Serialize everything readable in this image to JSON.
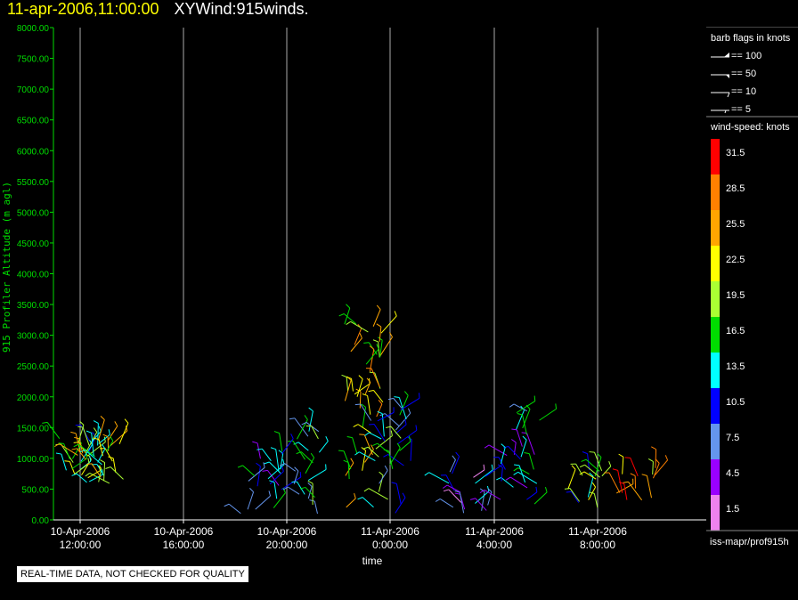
{
  "header": {
    "date_label": "11-apr-2006,11:00:00",
    "product_label": "XYWind:915winds."
  },
  "legend": {
    "barb_title": "barb flags in knots",
    "barb_items": [
      {
        "label": "== 100"
      },
      {
        "label": "== 50"
      },
      {
        "label": "== 10"
      },
      {
        "label": "== 5"
      }
    ],
    "speed_title": "wind-speed: knots",
    "speed_bins": [
      {
        "value": "31.5",
        "color": "#ff0000"
      },
      {
        "value": "28.5",
        "color": "#ff8000"
      },
      {
        "value": "25.5",
        "color": "#ffa500"
      },
      {
        "value": "22.5",
        "color": "#ffff00"
      },
      {
        "value": "19.5",
        "color": "#aaff33"
      },
      {
        "value": "16.5",
        "color": "#00dd00"
      },
      {
        "value": "13.5",
        "color": "#00ffff"
      },
      {
        "value": "10.5",
        "color": "#0000ff"
      },
      {
        "value": "7.5",
        "color": "#6495ed"
      },
      {
        "value": "4.5",
        "color": "#9900ff"
      },
      {
        "value": "1.5",
        "color": "#ee82ee"
      }
    ],
    "source": "iss-mapr/prof915h"
  },
  "footer_note": "REAL-TIME DATA, NOT CHECKED FOR QUALITY",
  "chart_data": {
    "type": "scatter",
    "title": "11-apr-2006,11:00:00  XYWind:915winds.",
    "xlabel": "time",
    "ylabel": "915 Profiler Altitude (m agl)",
    "ylim": [
      0,
      8000
    ],
    "yticks": [
      "8000.00",
      "7500.00",
      "7000.00",
      "6500.00",
      "6000.00",
      "5500.00",
      "5000.00",
      "4500.00",
      "4000.00",
      "3500.00",
      "3000.00",
      "2500.00",
      "2000.00",
      "1500.00",
      "1000.00",
      "500.00",
      "0.00"
    ],
    "xlim": [
      "10-Apr-2006 11:15",
      "11-Apr-2006 10:45"
    ],
    "xticks": [
      {
        "date": "10-Apr-2006",
        "time": "12:00:00"
      },
      {
        "date": "10-Apr-2006",
        "time": "16:00:00"
      },
      {
        "date": "10-Apr-2006",
        "time": "20:00:00"
      },
      {
        "date": "11-Apr-2006",
        "time": "0:00:00"
      },
      {
        "date": "11-Apr-2006",
        "time": "4:00:00"
      },
      {
        "date": "11-Apr-2006",
        "time": "8:00:00"
      }
    ],
    "grid": "vertical lines at x ticks",
    "legend_position": "right",
    "series": [
      {
        "values": [
          [
            0,
            400,
            1400,
            18
          ],
          [
            0.5,
            500,
            1300,
            20
          ],
          [
            1,
            500,
            1300,
            18
          ]
        ]
      },
      {
        "values": [
          [
            7,
            100,
            1000,
            10
          ],
          [
            8.5,
            100,
            1500,
            13
          ],
          [
            11,
            200,
            3200,
            22
          ]
        ]
      },
      {
        "values": [
          [
            12,
            100,
            1900,
            14
          ],
          [
            15,
            100,
            1000,
            8
          ],
          [
            17,
            200,
            1800,
            11
          ]
        ]
      },
      {
        "values": [
          [
            19.5,
            200,
            900,
            16
          ],
          [
            21.5,
            300,
            900,
            26
          ]
        ]
      }
    ],
    "series_note": "per-cluster [hour offset from 10-Apr-2006 12:00, min altitude m, max altitude m, typical speed knots]"
  }
}
